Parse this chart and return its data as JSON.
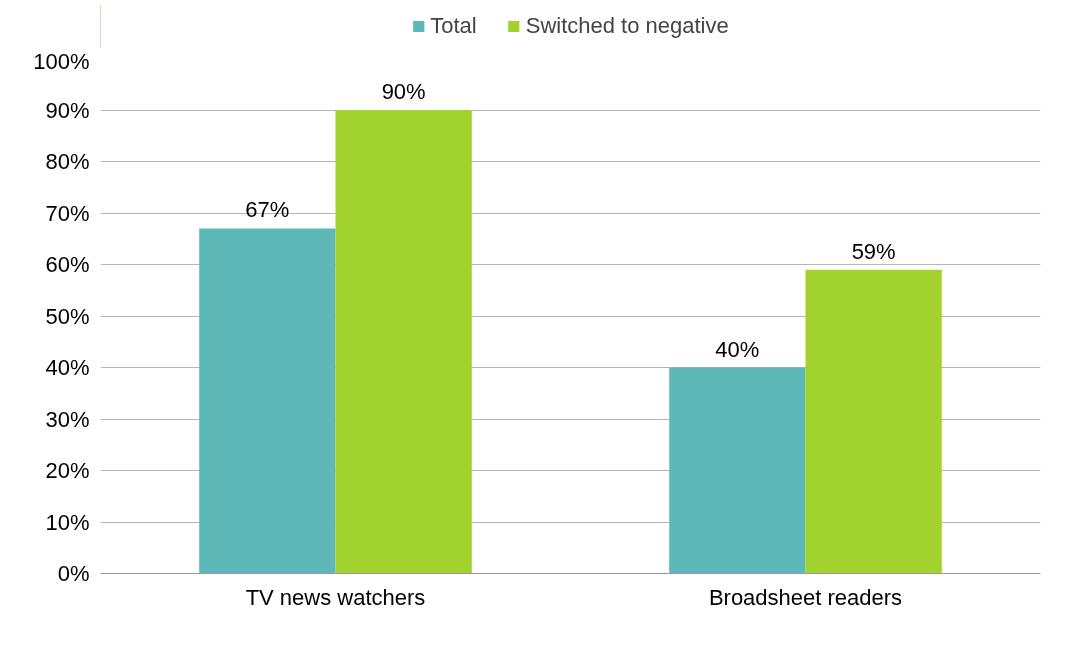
{
  "chart_data": {
    "type": "bar",
    "categories": [
      "TV news watchers",
      "Broadsheet readers"
    ],
    "series": [
      {
        "name": "Total",
        "color": "#5fb8b8",
        "values": [
          67,
          40
        ],
        "value_labels": [
          "67%",
          "40%"
        ]
      },
      {
        "name": "Switched to negative",
        "color": "#a2d22e",
        "values": [
          90,
          59
        ],
        "value_labels": [
          "90%",
          "59%"
        ]
      }
    ],
    "ylim": [
      0,
      100
    ],
    "yticks": [
      {
        "value": 0,
        "label": "0%"
      },
      {
        "value": 10,
        "label": "10%"
      },
      {
        "value": 20,
        "label": "20%"
      },
      {
        "value": 30,
        "label": "30%"
      },
      {
        "value": 40,
        "label": "40%"
      },
      {
        "value": 50,
        "label": "50%"
      },
      {
        "value": 60,
        "label": "60%"
      },
      {
        "value": 70,
        "label": "70%"
      },
      {
        "value": 80,
        "label": "80%"
      },
      {
        "value": 90,
        "label": "90%"
      },
      {
        "value": 100,
        "label": "100%"
      }
    ],
    "grid": "y",
    "legend": "top"
  }
}
